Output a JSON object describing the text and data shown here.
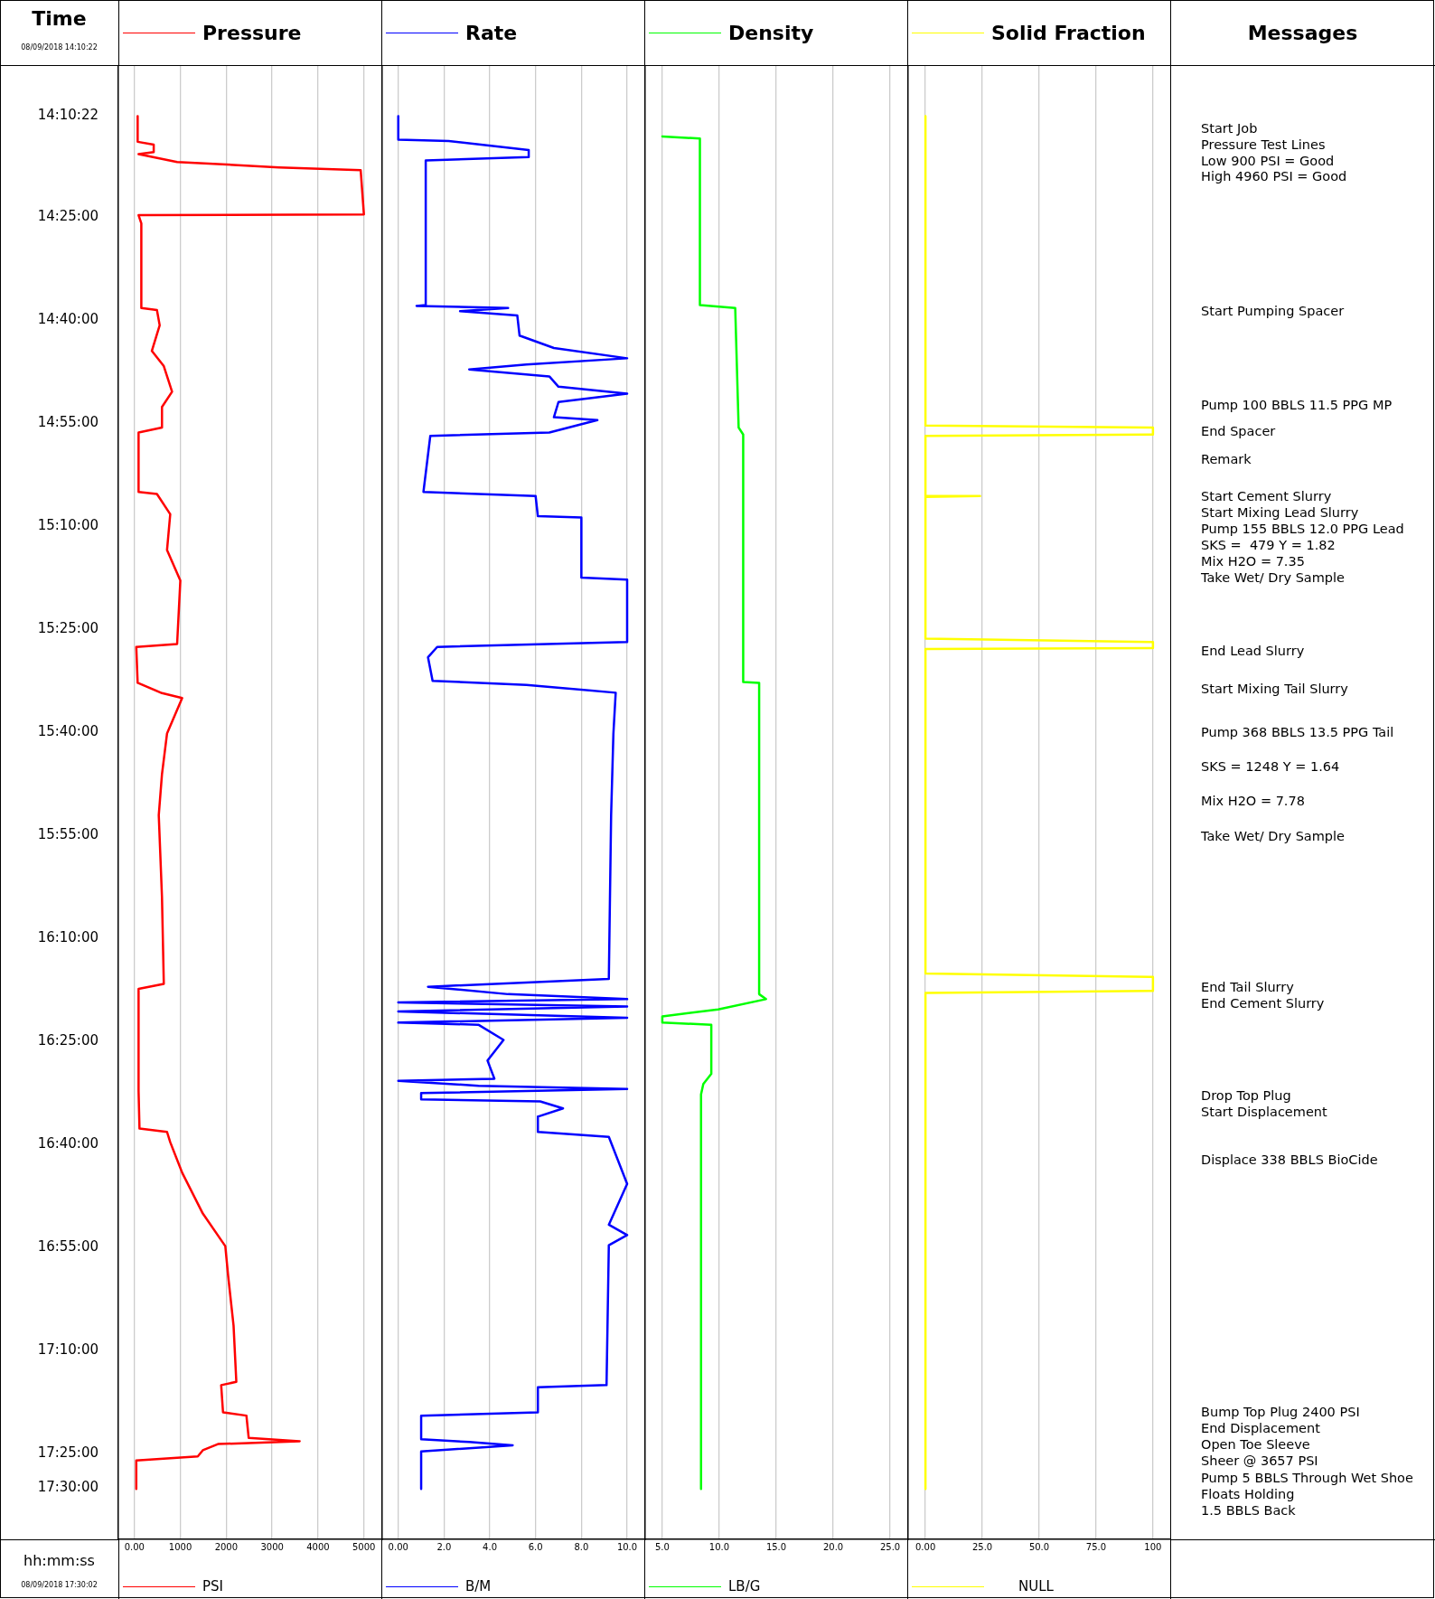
{
  "chart_data": [
    {
      "type": "line",
      "ylabel": "Time",
      "xlabel": "PSI",
      "legend": "top",
      "grid": "x",
      "xlim": [
        -350,
        5380
      ],
      "xticks": [
        {
          "value": 0,
          "label": "0.00"
        },
        1000,
        2000,
        3000,
        4000,
        5000
      ],
      "ylim": [
        17.624,
        14.049
      ],
      "yticks": [
        {
          "value": 14.1728,
          "label": "14:10:22"
        },
        {
          "value": 14.4167,
          "label": "14:25:00"
        },
        {
          "value": 14.6667,
          "label": "14:40:00"
        },
        {
          "value": 14.9167,
          "label": "14:55:00"
        },
        {
          "value": 15.1667,
          "label": "15:10:00"
        },
        {
          "value": 15.4167,
          "label": "15:25:00"
        },
        {
          "value": 15.6667,
          "label": "15:40:00"
        },
        {
          "value": 15.9167,
          "label": "15:55:00"
        },
        {
          "value": 16.1667,
          "label": "16:10:00"
        },
        {
          "value": 16.4167,
          "label": "16:25:00"
        },
        {
          "value": 16.6667,
          "label": "16:40:00"
        },
        {
          "value": 16.9167,
          "label": "16:55:00"
        },
        {
          "value": 17.1667,
          "label": "17:10:00"
        },
        {
          "value": 17.4167,
          "label": "17:25:00"
        },
        {
          "value": 17.5,
          "label": "17:30:00"
        }
      ],
      "series": [
        {
          "name": "Pressure",
          "color": "#ff0000",
          "x": [
            70,
            70,
            420,
            420,
            90,
            930,
            3150,
            4930,
            5000,
            90,
            150,
            150,
            490,
            550,
            380,
            640,
            820,
            600,
            600,
            90,
            90,
            490,
            780,
            710,
            1000,
            930,
            40,
            70,
            600,
            1040,
            710,
            600,
            530,
            600,
            640,
            90,
            90,
            110,
            710,
            780,
            1040,
            1490,
            1980,
            2040,
            2160,
            2220,
            1890,
            1930,
            2440,
            2490,
            3600,
            1820,
            1490,
            1380,
            40,
            40
          ],
          "values": [
            14.173,
            14.235,
            14.242,
            14.26,
            14.265,
            14.284,
            14.297,
            14.304,
            14.411,
            14.413,
            14.433,
            14.638,
            14.643,
            14.68,
            14.742,
            14.779,
            14.841,
            14.878,
            14.928,
            14.94,
            15.084,
            15.089,
            15.138,
            15.225,
            15.299,
            15.453,
            15.46,
            15.547,
            15.572,
            15.584,
            15.67,
            15.769,
            15.868,
            16.066,
            16.277,
            16.289,
            16.537,
            16.628,
            16.636,
            16.661,
            16.735,
            16.834,
            16.913,
            16.983,
            17.106,
            17.242,
            17.25,
            17.316,
            17.324,
            17.378,
            17.386,
            17.393,
            17.408,
            17.423,
            17.433,
            17.502
          ]
        }
      ],
      "annotations": [
        "08/09/2018 14:10:22",
        "hh:mm:ss",
        "08/09/2018 17:30:02",
        "Messages",
        "Start Job",
        "Pressure Test Lines",
        "Low 900 PSI = Good",
        "High 4960 PSI = Good",
        "Start Pumping Spacer",
        "Pump 100 BBLS 11.5 PPG MP",
        "End Spacer",
        "Remark",
        "Start Cement Slurry",
        "Start Mixing Lead Slurry",
        "Pump 155 BBLS 12.0 PPG Lead",
        "SKS =  479 Y = 1.82",
        "Mix H2O = 7.35",
        "Take Wet/ Dry Sample",
        "End Lead Slurry",
        "Start Mixing Tail Slurry",
        "Pump 368 BBLS 13.5 PPG Tail",
        "SKS = 1248 Y = 1.64",
        "Mix H2O = 7.78",
        "Take Wet/ Dry Sample",
        "End Tail Slurry",
        "End Cement Slurry",
        "Drop Top Plug",
        "Start Displacement",
        "Displace 338 BBLS BioCide",
        "Bump Top Plug 2400 PSI",
        "End Displacement",
        "Open Toe Sleeve",
        "Sheer @ 3657 PSI",
        "Pump 5 BBLS Through Wet Shoe",
        "Floats Holding",
        "1.5 BBLS Back"
      ]
    },
    {
      "type": "line",
      "xlabel": "B/M",
      "legend": "top",
      "grid": "x",
      "tick_labels": "x",
      "xlim": [
        -0.7,
        10.75
      ],
      "xticks": [
        {
          "value": 0,
          "label": "0.00"
        },
        {
          "value": 2,
          "label": "2.0"
        },
        {
          "value": 4,
          "label": "4.0"
        },
        {
          "value": 6,
          "label": "6.0"
        },
        {
          "value": 8,
          "label": "8.0"
        },
        {
          "value": 10,
          "label": "10.0"
        }
      ],
      "ylim": [
        17.624,
        14.049
      ],
      "series": [
        {
          "name": "Rate",
          "color": "#0000ff",
          "x": [
            0,
            0,
            2.2,
            5.7,
            5.7,
            1.2,
            1.2,
            0.8,
            4.8,
            2.7,
            5.2,
            5.3,
            6.8,
            10,
            5.6,
            3.1,
            6.6,
            7,
            10,
            7,
            6.8,
            8.7,
            6.6,
            1.4,
            1.1,
            6,
            6.1,
            8,
            8,
            10,
            10,
            1.7,
            1.3,
            1.5,
            5.6,
            9.5,
            9.4,
            9.3,
            9.2,
            1.3,
            4.8,
            10,
            0,
            10,
            0,
            10,
            0,
            3.5,
            4.6,
            3.9,
            4.2,
            0,
            3.5,
            10,
            1,
            1,
            6.2,
            7.2,
            6.1,
            6.1,
            9.2,
            10,
            9.2,
            10,
            9.2,
            9.1,
            6.1,
            6.1,
            1,
            1,
            3.1,
            5,
            1,
            1
          ],
          "values": [
            14.173,
            14.23,
            14.233,
            14.255,
            14.272,
            14.28,
            14.631,
            14.633,
            14.638,
            14.646,
            14.656,
            14.705,
            14.735,
            14.76,
            14.775,
            14.787,
            14.804,
            14.829,
            14.846,
            14.866,
            14.903,
            14.91,
            14.94,
            14.948,
            15.084,
            15.094,
            15.143,
            15.146,
            15.292,
            15.297,
            15.448,
            15.46,
            15.485,
            15.542,
            15.552,
            15.571,
            15.67,
            15.868,
            16.265,
            16.284,
            16.302,
            16.314,
            16.322,
            16.332,
            16.344,
            16.359,
            16.371,
            16.376,
            16.413,
            16.463,
            16.507,
            16.512,
            16.524,
            16.532,
            16.542,
            16.557,
            16.562,
            16.579,
            16.599,
            16.636,
            16.648,
            16.762,
            16.861,
            16.886,
            16.911,
            17.25,
            17.255,
            17.316,
            17.324,
            17.381,
            17.388,
            17.396,
            17.411,
            17.502
          ]
        }
      ]
    },
    {
      "type": "line",
      "xlabel": "LB/G",
      "legend": "top",
      "grid": "x",
      "tick_labels": "x",
      "xlim": [
        3.5,
        26.5
      ],
      "xticks": [
        {
          "value": 5,
          "label": "5.0"
        },
        {
          "value": 10,
          "label": "10.0"
        },
        {
          "value": 15,
          "label": "15.0"
        },
        {
          "value": 20,
          "label": "20.0"
        },
        {
          "value": 25,
          "label": "25.0"
        }
      ],
      "ylim": [
        17.624,
        14.049
      ],
      "series": [
        {
          "name": "Density",
          "color": "#00ff00",
          "x": [
            5,
            8.3,
            8.3,
            11.4,
            11.7,
            12.1,
            12.1,
            13.5,
            13.5,
            14.1,
            9.9,
            5,
            5,
            9.3,
            9.3,
            8.6,
            8.4,
            8.4
          ],
          "values": [
            14.222,
            14.227,
            14.631,
            14.638,
            14.928,
            14.945,
            15.545,
            15.547,
            16.302,
            16.314,
            16.339,
            16.356,
            16.371,
            16.376,
            16.495,
            16.52,
            16.545,
            17.502
          ]
        }
      ]
    },
    {
      "type": "line",
      "xlabel": "NULL",
      "legend": "top",
      "grid": "x",
      "tick_labels": "x",
      "xlim": [
        -7.6,
        107.6
      ],
      "xticks": [
        {
          "value": 0,
          "label": "0.00"
        },
        {
          "value": 25,
          "label": "25.0"
        },
        {
          "value": 50,
          "label": "50.0"
        },
        {
          "value": 75,
          "label": "75.0"
        },
        100
      ],
      "ylim": [
        17.624,
        14.049
      ],
      "series": [
        {
          "name": "Solid Fraction",
          "color": "#ffff00",
          "x": [
            0,
            0,
            100,
            100,
            0,
            0,
            24,
            0,
            0,
            100,
            100,
            0,
            0,
            100,
            100,
            0,
            0
          ],
          "values": [
            14.173,
            14.923,
            14.928,
            14.945,
            14.948,
            15.094,
            15.094,
            15.096,
            15.44,
            15.448,
            15.463,
            15.465,
            16.252,
            16.26,
            16.294,
            16.299,
            17.502
          ]
        }
      ]
    }
  ]
}
